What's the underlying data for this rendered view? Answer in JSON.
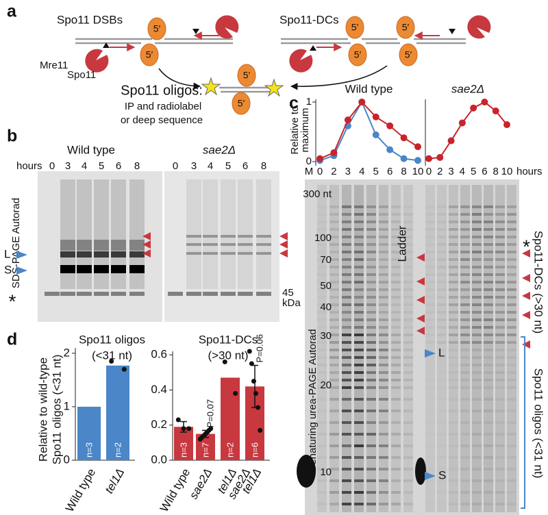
{
  "panel_labels": [
    "a",
    "b",
    "c",
    "d"
  ],
  "diagram": {
    "left_title": "Spo11 DSBs",
    "right_title": "Spo11-DCs",
    "mre11": "Mre11",
    "spo11": "Spo11",
    "end": "5′",
    "product_title": "Spo11 oligos:",
    "product_lines": [
      "IP and radiolabel",
      "or deep sequence"
    ]
  },
  "gel_b": {
    "hours_label": "hours",
    "lanes": [
      "0",
      "3",
      "4",
      "5",
      "6",
      "8"
    ],
    "groups": [
      "Wild type",
      "sae2Δ"
    ],
    "axis_label": "SDS-PAGE Autorad",
    "markers": [
      "L",
      "S"
    ],
    "asterisk": "*",
    "size": [
      "45",
      "kDa"
    ]
  },
  "gel_c": {
    "lane_m": "M",
    "ladder": [
      "300 nt",
      "100",
      "70",
      "50",
      "40",
      "30",
      "20",
      "10"
    ],
    "ladder_label": "Ladder",
    "axis_label": "Denaturing urea-PAGE Autorad",
    "markers": [
      "L",
      "S"
    ],
    "asterisk": "*",
    "brackets": [
      "Spo11-DCs (>30 nt)",
      "Spo11 oligos (<31 nt)"
    ]
  },
  "chart_data": [
    {
      "type": "line",
      "title": "Wild type",
      "y_label": [
        "Relative to",
        "maximum"
      ],
      "categories": [
        "0",
        "2",
        "3",
        "4",
        "5",
        "6",
        "8",
        "10"
      ],
      "ylim": [
        0,
        1
      ],
      "yticks": [
        0,
        1
      ],
      "series": [
        {
          "color": "#4a86c8",
          "values": [
            0.02,
            0.1,
            0.6,
            1.0,
            0.45,
            0.2,
            0.05,
            0.02
          ]
        },
        {
          "color": "#c8242c",
          "values": [
            0.05,
            0.15,
            0.7,
            1.0,
            0.75,
            0.6,
            0.4,
            0.25
          ]
        }
      ]
    },
    {
      "type": "line",
      "title": "sae2Δ",
      "x_label": "hours",
      "categories": [
        "0",
        "2",
        "3",
        "4",
        "5",
        "6",
        "8",
        "10"
      ],
      "ylim": [
        0,
        1
      ],
      "series": [
        {
          "color": "#c8242c",
          "values": [
            0.05,
            0.07,
            0.35,
            0.65,
            0.9,
            1.0,
            0.85,
            0.62
          ]
        }
      ]
    },
    {
      "type": "bar",
      "title": [
        "Spo11 oligos",
        "(<31 nt)"
      ],
      "y_label": [
        "Relative to wild-type",
        "Spo11 oligos (<31 nt)"
      ],
      "categories": [
        [
          "Wild type"
        ],
        [
          "tel1Δ"
        ]
      ],
      "values": [
        1,
        1.77
      ],
      "color": "#4a86c8",
      "n_labels": [
        "n=3",
        "n=2"
      ],
      "points": [
        null,
        [
          1.85,
          1.7
        ]
      ],
      "ylim": [
        0,
        2.1
      ],
      "yticks": [
        0,
        1,
        2
      ]
    },
    {
      "type": "bar",
      "title": [
        "Spo11-DCs",
        "(>30 nt)"
      ],
      "categories": [
        [
          "Wild type"
        ],
        [
          "sae2Δ"
        ],
        [
          "tel1Δ"
        ],
        [
          "sae2Δ",
          "tel1Δ"
        ]
      ],
      "values": [
        0.19,
        0.15,
        0.47,
        0.42
      ],
      "errors": [
        0.03,
        0.02,
        null,
        0.12
      ],
      "color": "#c8383f",
      "n_labels": [
        "n=3",
        "n=7",
        "n=2",
        "n=6"
      ],
      "p_values": [
        null,
        "P=0.07",
        null,
        "P=0.06"
      ],
      "points": [
        [
          0.23,
          0.18,
          0.18
        ],
        [
          0.12,
          0.13,
          0.14,
          0.15,
          0.16,
          0.17,
          0.18
        ],
        [
          0.56,
          0.38
        ],
        [
          0.62,
          0.55,
          0.45,
          0.38,
          0.3,
          0.17
        ]
      ],
      "ylim": [
        0,
        0.62
      ],
      "yticks": [
        {
          "value": 0,
          "label": "0.0"
        },
        0.2,
        0.4,
        0.6
      ]
    }
  ]
}
